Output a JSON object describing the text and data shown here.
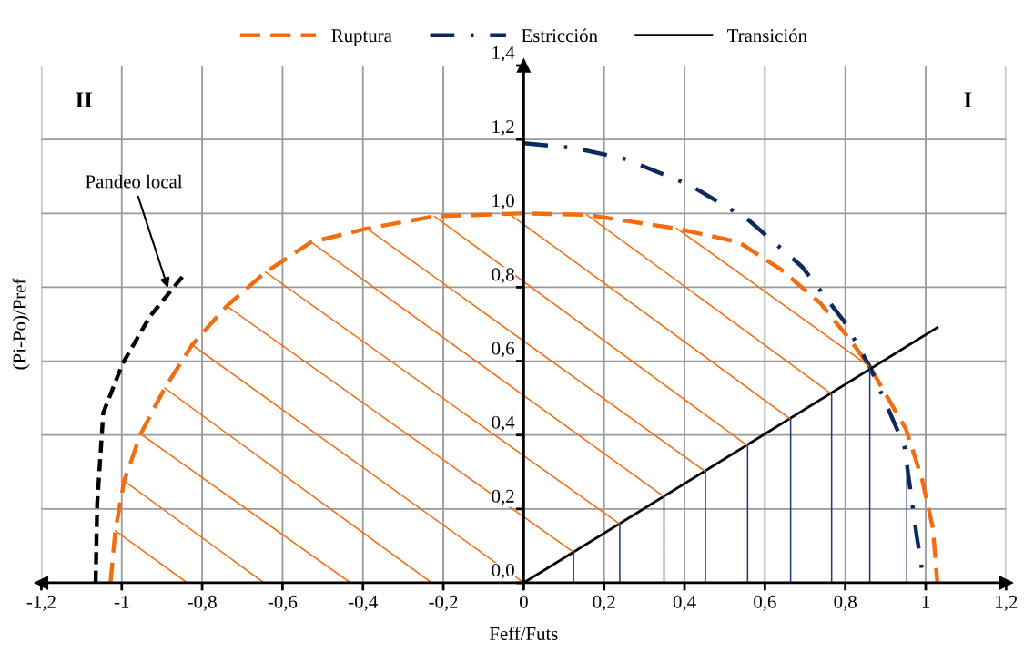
{
  "chart_data": {
    "type": "line",
    "xlabel": "Feff/Futs",
    "ylabel": "(Pi-Po)/Pref",
    "xlim": [
      -1.2,
      1.2
    ],
    "ylim": [
      0,
      1.4
    ],
    "xticks": [
      {
        "value": -1.2,
        "label": "-1,2"
      },
      -1,
      {
        "value": -0.8,
        "label": "-0,8"
      },
      {
        "value": -0.6,
        "label": "-0,6"
      },
      {
        "value": -0.4,
        "label": "-0,4"
      },
      {
        "value": -0.2,
        "label": "-0,2"
      },
      0,
      {
        "value": 0.2,
        "label": "0,2"
      },
      {
        "value": 0.4,
        "label": "0,4"
      },
      {
        "value": 0.6,
        "label": "0,6"
      },
      {
        "value": 0.8,
        "label": "0,8"
      },
      1,
      {
        "value": 1.2,
        "label": "1,2"
      }
    ],
    "yticks": [
      {
        "value": 0,
        "label": "0,0"
      },
      {
        "value": 0.2,
        "label": "0,2"
      },
      {
        "value": 0.4,
        "label": "0,4"
      },
      {
        "value": 0.6,
        "label": "0,6"
      },
      {
        "value": 0.8,
        "label": "0,8"
      },
      {
        "value": 1.0,
        "label": "1,0"
      },
      {
        "value": 1.2,
        "label": "1,2"
      },
      {
        "value": 1.4,
        "label": "1,4"
      }
    ],
    "grid": true,
    "legend": "top",
    "marker": "none",
    "series": [
      {
        "name": "Ruptura",
        "color": "#f36c10",
        "line_style": "dashed",
        "x": [
          -1.028,
          -1.016,
          -0.994,
          -0.953,
          -0.893,
          -0.825,
          -0.739,
          -0.642,
          -0.529,
          -0.39,
          -0.222,
          0,
          0.157,
          0.381,
          0.535,
          0.64,
          0.737,
          0.811,
          0.861,
          0.951,
          0.991,
          1.018,
          1.029
        ],
        "values": [
          0,
          0.141,
          0.276,
          0.403,
          0.527,
          0.644,
          0.749,
          0.841,
          0.922,
          0.959,
          0.992,
          1.0,
          0.996,
          0.959,
          0.922,
          0.848,
          0.758,
          0.659,
          0.585,
          0.416,
          0.28,
          0.148,
          0
        ]
      },
      {
        "name": "Estricción",
        "color": "#0d2a5e",
        "line_style": "dashdot",
        "x": [
          0,
          0.127,
          0.25,
          0.411,
          0.557,
          0.692,
          0.797,
          0.861,
          0.947,
          0.977,
          0.996
        ],
        "values": [
          1.19,
          1.177,
          1.148,
          1.078,
          0.984,
          0.856,
          0.708,
          0.585,
          0.37,
          0.132,
          0
        ]
      },
      {
        "name": "Transición",
        "color": "#000000",
        "line_style": "solid",
        "x": [
          0,
          1.029
        ],
        "values": [
          0,
          0.691
        ]
      },
      {
        "color": "#000000",
        "line_style": "dashed",
        "x": [
          -1.065,
          -1.061,
          -1.046,
          -0.998,
          -0.93,
          -0.844
        ],
        "values": [
          0,
          0.215,
          0.46,
          0.593,
          0.721,
          0.835
        ]
      },
      {
        "color": "#f36c10",
        "line_style": "solid",
        "x": [
          -1.016,
          -0.837,
          null,
          -0.994,
          -0.646,
          null,
          -0.953,
          -0.431,
          null,
          -0.893,
          -0.229,
          null,
          -0.825,
          0,
          null,
          -0.739,
          0.124,
          null,
          -0.642,
          0.239,
          null,
          -0.529,
          0.349,
          null,
          -0.39,
          0.452,
          null,
          -0.222,
          0.557,
          null,
          -0.038,
          0.664,
          null,
          0.157,
          0.766,
          null,
          0.381,
          0.861
        ],
        "values": [
          0.141,
          0,
          null,
          0.276,
          0,
          null,
          0.403,
          0,
          null,
          0.527,
          0,
          null,
          0.644,
          0,
          null,
          0.749,
          0.083,
          null,
          0.841,
          0.159,
          null,
          0.922,
          0.233,
          null,
          0.959,
          0.301,
          null,
          0.992,
          0.371,
          null,
          1.0,
          0.443,
          null,
          0.996,
          0.511,
          null,
          0.959,
          0.585
        ]
      },
      {
        "color": "#1f3a7a",
        "line_style": "solid",
        "x": [
          0.124,
          0.124,
          null,
          0.239,
          0.239,
          null,
          0.349,
          0.349,
          null,
          0.452,
          0.452,
          null,
          0.557,
          0.557,
          null,
          0.664,
          0.664,
          null,
          0.766,
          0.766,
          null,
          0.861,
          0.861,
          null,
          0.953,
          0.953
        ],
        "values": [
          0,
          0.083,
          null,
          0,
          0.159,
          null,
          0,
          0.233,
          null,
          0,
          0.301,
          null,
          0,
          0.371,
          null,
          0,
          0.443,
          null,
          0,
          0.511,
          null,
          0,
          0.585,
          null,
          0,
          0.317
        ]
      }
    ],
    "annotations": [
      {
        "text": "Pandeo local",
        "x": -0.885,
        "y": 0.798
      },
      "II",
      "I"
    ]
  }
}
